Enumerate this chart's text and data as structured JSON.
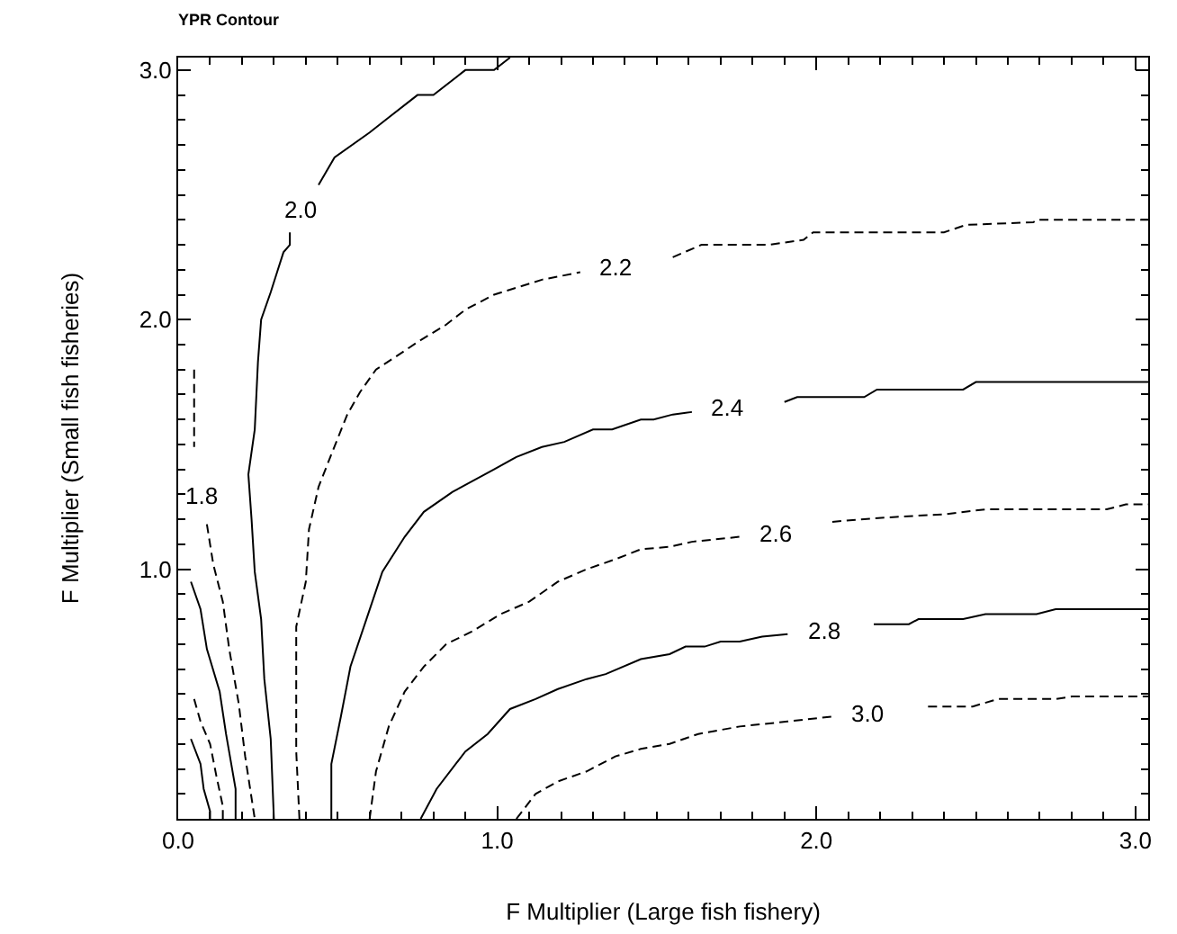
{
  "chart_data": {
    "type": "line",
    "title": "YPR Contour",
    "xlabel": "F Multiplier (Large fish fishery)",
    "ylabel": "F Multiplier (Small fish fisheries)",
    "xlim": [
      0,
      3.04
    ],
    "ylim": [
      0,
      3.05
    ],
    "xticks": [
      {
        "value": 0,
        "label": "0.0"
      },
      {
        "value": 1,
        "label": "1.0"
      },
      {
        "value": 2,
        "label": "2.0"
      },
      {
        "value": 3,
        "label": "3.0"
      }
    ],
    "yticks": [
      {
        "value": 1,
        "label": "1.0"
      },
      {
        "value": 2,
        "label": "2.0"
      },
      {
        "value": 3,
        "label": "3.0"
      }
    ],
    "grid": false,
    "marker": "none",
    "annotations": [
      {
        "text": "1.8",
        "x": 0.09,
        "y": 1.18
      },
      {
        "text": "2.0",
        "x": 0.44,
        "y": 2.54
      },
      {
        "text": "2.2",
        "x": 1.26,
        "y": 2.19
      },
      {
        "text": "2.4",
        "x": 1.61,
        "y": 1.63
      },
      {
        "text": "2.6",
        "x": 1.76,
        "y": 1.13
      },
      {
        "text": "2.8",
        "x": 1.91,
        "y": 0.74
      },
      {
        "text": "3.0",
        "x": 2.05,
        "y": 0.41
      }
    ],
    "series": [
      {
        "color": "#000000",
        "line_style": "solid",
        "x": [
          0.04,
          0.07,
          0.08,
          0.1,
          0.1
        ],
        "values": [
          0.32,
          0.22,
          0.12,
          0.03,
          0
        ]
      },
      {
        "color": "#000000",
        "line_style": "dashed",
        "x": [
          0.05,
          0.07,
          0.1,
          0.12,
          0.14,
          0.14
        ],
        "values": [
          0.48,
          0.39,
          0.3,
          0.17,
          0.05,
          0
        ]
      },
      {
        "color": "#000000",
        "line_style": "solid",
        "x": [
          0.04,
          0.07,
          0.09,
          0.13,
          0.15,
          0.18,
          0.18
        ],
        "values": [
          0.95,
          0.84,
          0.68,
          0.51,
          0.34,
          0.12,
          0
        ]
      },
      {
        "color": "#000000",
        "line_style": "dashed",
        "x": [
          0.05,
          0.05
        ],
        "values": [
          1.8,
          1.49
        ]
      },
      {
        "color": "#000000",
        "line_style": "dashed",
        "x": [
          0.09,
          0.11,
          0.14,
          0.16,
          0.19,
          0.21,
          0.24
        ],
        "values": [
          1.18,
          1.02,
          0.87,
          0.68,
          0.46,
          0.25,
          0
        ]
      },
      {
        "color": "#000000",
        "line_style": "solid",
        "x": [
          1.04,
          0.99,
          0.9,
          0.8,
          0.75,
          0.66,
          0.6,
          0.49,
          0.44
        ],
        "values": [
          3.05,
          3.0,
          3.0,
          2.9,
          2.9,
          2.81,
          2.75,
          2.65,
          2.54
        ]
      },
      {
        "color": "#000000",
        "line_style": "solid",
        "x": [
          0.35,
          0.35,
          0.33,
          0.31,
          0.29,
          0.26,
          0.25,
          0.24,
          0.22,
          0.23,
          0.24,
          0.26,
          0.27,
          0.29,
          0.3
        ],
        "values": [
          2.35,
          2.3,
          2.27,
          2.19,
          2.11,
          2.0,
          1.83,
          1.56,
          1.38,
          1.2,
          0.99,
          0.8,
          0.56,
          0.32,
          0
        ]
      },
      {
        "color": "#000000",
        "line_style": "dashed",
        "x": [
          0.38,
          0.37,
          0.37,
          0.37,
          0.4,
          0.41,
          0.44,
          0.48,
          0.53,
          0.57,
          0.62,
          0.68,
          0.75,
          0.84,
          0.9,
          0.99,
          1.14,
          1.26
        ],
        "values": [
          0,
          0.27,
          0.56,
          0.77,
          0.95,
          1.16,
          1.33,
          1.46,
          1.62,
          1.71,
          1.8,
          1.85,
          1.91,
          1.98,
          2.04,
          2.1,
          2.16,
          2.19
        ]
      },
      {
        "color": "#000000",
        "line_style": "dashed",
        "x": [
          1.55,
          1.64,
          1.85,
          1.96,
          1.99,
          2.4,
          2.47,
          2.68,
          2.69,
          3.04
        ],
        "values": [
          2.25,
          2.3,
          2.3,
          2.32,
          2.35,
          2.35,
          2.38,
          2.39,
          2.4,
          2.4
        ]
      },
      {
        "color": "#000000",
        "line_style": "solid",
        "x": [
          0.48,
          0.48,
          0.51,
          0.54,
          0.59,
          0.64,
          0.71,
          0.77,
          0.86,
          0.99,
          1.06,
          1.14,
          1.21,
          1.3,
          1.36,
          1.45,
          1.49,
          1.55,
          1.61
        ],
        "values": [
          0,
          0.22,
          0.41,
          0.61,
          0.8,
          0.99,
          1.13,
          1.23,
          1.31,
          1.4,
          1.45,
          1.49,
          1.51,
          1.56,
          1.56,
          1.6,
          1.6,
          1.62,
          1.63
        ]
      },
      {
        "color": "#000000",
        "line_style": "solid",
        "x": [
          1.9,
          1.94,
          2.15,
          2.19,
          2.46,
          2.5,
          3.04
        ],
        "values": [
          1.67,
          1.69,
          1.69,
          1.72,
          1.72,
          1.75,
          1.75
        ]
      },
      {
        "color": "#000000",
        "line_style": "dashed",
        "x": [
          0.6,
          0.62,
          0.66,
          0.71,
          0.77,
          0.84,
          0.92,
          1.01,
          1.1,
          1.19,
          1.28,
          1.37,
          1.45,
          1.54,
          1.61,
          1.76
        ],
        "values": [
          0,
          0.19,
          0.37,
          0.51,
          0.61,
          0.7,
          0.75,
          0.82,
          0.87,
          0.95,
          1.0,
          1.04,
          1.08,
          1.09,
          1.11,
          1.13
        ]
      },
      {
        "color": "#000000",
        "line_style": "dashed",
        "x": [
          2.05,
          2.14,
          2.25,
          2.4,
          2.53,
          2.91,
          2.97,
          3.04
        ],
        "values": [
          1.19,
          1.2,
          1.21,
          1.22,
          1.24,
          1.24,
          1.26,
          1.26
        ]
      },
      {
        "color": "#000000",
        "line_style": "solid",
        "x": [
          0.76,
          0.81,
          0.9,
          0.97,
          1.04,
          1.12,
          1.19,
          1.28,
          1.34,
          1.45,
          1.54,
          1.59,
          1.65,
          1.7,
          1.76,
          1.83,
          1.91
        ],
        "values": [
          0,
          0.12,
          0.27,
          0.34,
          0.44,
          0.48,
          0.52,
          0.56,
          0.58,
          0.64,
          0.66,
          0.69,
          0.69,
          0.71,
          0.71,
          0.73,
          0.74
        ]
      },
      {
        "color": "#000000",
        "line_style": "solid",
        "x": [
          2.18,
          2.29,
          2.32,
          2.46,
          2.53,
          2.69,
          2.75,
          3.04
        ],
        "values": [
          0.78,
          0.78,
          0.8,
          0.8,
          0.82,
          0.82,
          0.84,
          0.84
        ]
      },
      {
        "color": "#000000",
        "line_style": "dashed",
        "x": [
          1.06,
          1.12,
          1.19,
          1.28,
          1.37,
          1.45,
          1.54,
          1.63,
          1.76,
          1.91,
          2.05
        ],
        "values": [
          0,
          0.1,
          0.15,
          0.19,
          0.25,
          0.28,
          0.3,
          0.34,
          0.37,
          0.39,
          0.41
        ]
      },
      {
        "color": "#000000",
        "line_style": "dashed",
        "x": [
          2.35,
          2.49,
          2.57,
          2.75,
          2.8,
          3.04
        ],
        "values": [
          0.45,
          0.45,
          0.48,
          0.48,
          0.49,
          0.49
        ]
      }
    ]
  }
}
